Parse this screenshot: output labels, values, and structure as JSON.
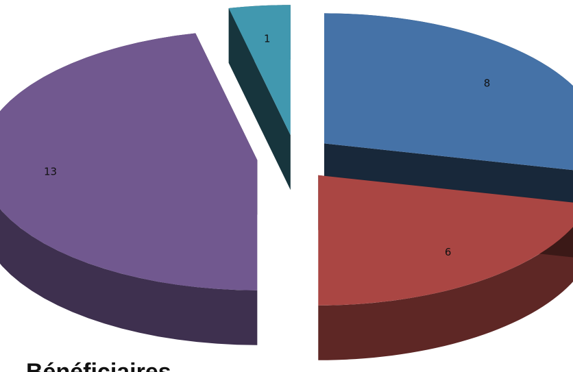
{
  "chart_data": {
    "type": "pie",
    "title": "Bénéficiaires",
    "slices": [
      {
        "value": 8,
        "color": "#4572A7",
        "label": "8"
      },
      {
        "value": 6,
        "color": "#AA4643",
        "label": "6"
      },
      {
        "value": 0,
        "color": "#89A54E",
        "label": "0"
      },
      {
        "value": 13,
        "color": "#71588F",
        "label": "13"
      },
      {
        "value": 1,
        "color": "#4198AF",
        "label": "1"
      },
      {
        "value": 0,
        "color": "#DB843D",
        "label": "0"
      },
      {
        "value": 0,
        "color": "#93A9CF",
        "label": "0"
      }
    ]
  }
}
